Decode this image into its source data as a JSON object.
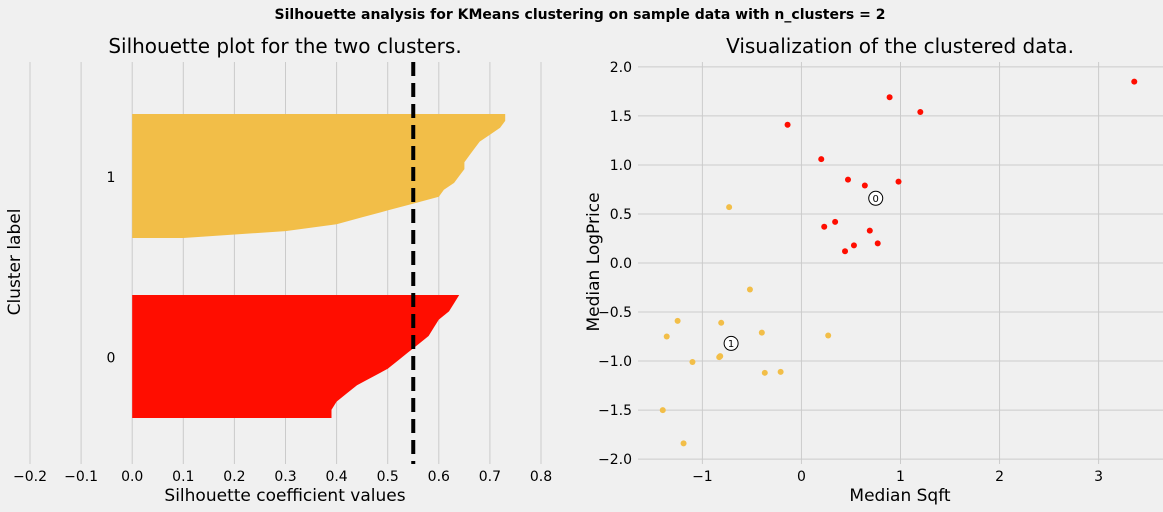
{
  "suptitle": "Silhouette analysis for KMeans clustering on sample data with n_clusters = 2",
  "colors": {
    "background": "#f0f0f0",
    "grid": "#cbcbcb",
    "cluster0": "#ff0d00",
    "cluster1": "#f2be48",
    "threshold": "#000000"
  },
  "chart_data": [
    {
      "type": "area",
      "title": "Silhouette plot for the two clusters.",
      "xlabel": "Silhouette coefficient values",
      "ylabel": "Cluster label",
      "xlim": [
        -0.2,
        0.8
      ],
      "xticks": [
        "−0.2",
        "−0.1",
        "0.0",
        "0.1",
        "0.2",
        "0.3",
        "0.4",
        "0.5",
        "0.6",
        "0.7",
        "0.8"
      ],
      "yticks": [
        "0",
        "1"
      ],
      "grid": "vertical",
      "average_silhouette": 0.55,
      "series": [
        {
          "name": "0",
          "color": "#ff0d00",
          "values": [
            0.64,
            0.63,
            0.62,
            0.6,
            0.59,
            0.58,
            0.56,
            0.54,
            0.52,
            0.5,
            0.47,
            0.44,
            0.42,
            0.4,
            0.39,
            0.39
          ]
        },
        {
          "name": "1",
          "color": "#f2be48",
          "values": [
            0.73,
            0.73,
            0.72,
            0.7,
            0.68,
            0.67,
            0.66,
            0.65,
            0.65,
            0.64,
            0.63,
            0.61,
            0.6,
            0.55,
            0.5,
            0.45,
            0.4,
            0.3,
            0.1
          ]
        }
      ]
    },
    {
      "type": "scatter",
      "title": "Visualization of the clustered data.",
      "xlabel": "Median Sqft",
      "ylabel": "Median LogPrice",
      "xlim": [
        -1.65,
        3.65
      ],
      "ylim": [
        -2.05,
        2.05
      ],
      "xticks": [
        -1,
        0,
        1,
        2,
        3
      ],
      "xtick_labels": [
        "−1",
        "0",
        "1",
        "2",
        "3"
      ],
      "yticks": [
        -2.0,
        -1.5,
        -1.0,
        -0.5,
        0.0,
        0.5,
        1.0,
        1.5,
        2.0
      ],
      "ytick_labels": [
        "−2.0",
        "−1.5",
        "−1.0",
        "−0.5",
        "0.0",
        "0.5",
        "1.0",
        "1.5",
        "2.0"
      ],
      "grid": "both",
      "series": [
        {
          "name": "0",
          "color": "#ff0d00",
          "x": [
            3.36,
            0.89,
            1.2,
            -0.14,
            0.2,
            0.47,
            0.64,
            0.98,
            0.23,
            0.34,
            0.69,
            0.77,
            0.53,
            0.44
          ],
          "y": [
            1.85,
            1.69,
            1.54,
            1.41,
            1.06,
            0.85,
            0.79,
            0.83,
            0.37,
            0.42,
            0.33,
            0.2,
            0.18,
            0.12
          ]
        },
        {
          "name": "1",
          "color": "#f2be48",
          "x": [
            -0.73,
            -0.52,
            -1.25,
            -1.36,
            -0.81,
            -0.4,
            0.27,
            -0.82,
            -0.83,
            -1.1,
            -0.37,
            -0.21,
            -1.4,
            -1.19
          ],
          "y": [
            0.57,
            -0.27,
            -0.59,
            -0.75,
            -0.61,
            -0.71,
            -0.74,
            -0.95,
            -0.96,
            -1.01,
            -1.12,
            -1.11,
            -1.5,
            -1.84
          ]
        }
      ],
      "centers": [
        {
          "label": "0",
          "x": 0.75,
          "y": 0.66
        },
        {
          "label": "1",
          "x": -0.71,
          "y": -0.82
        }
      ]
    }
  ]
}
